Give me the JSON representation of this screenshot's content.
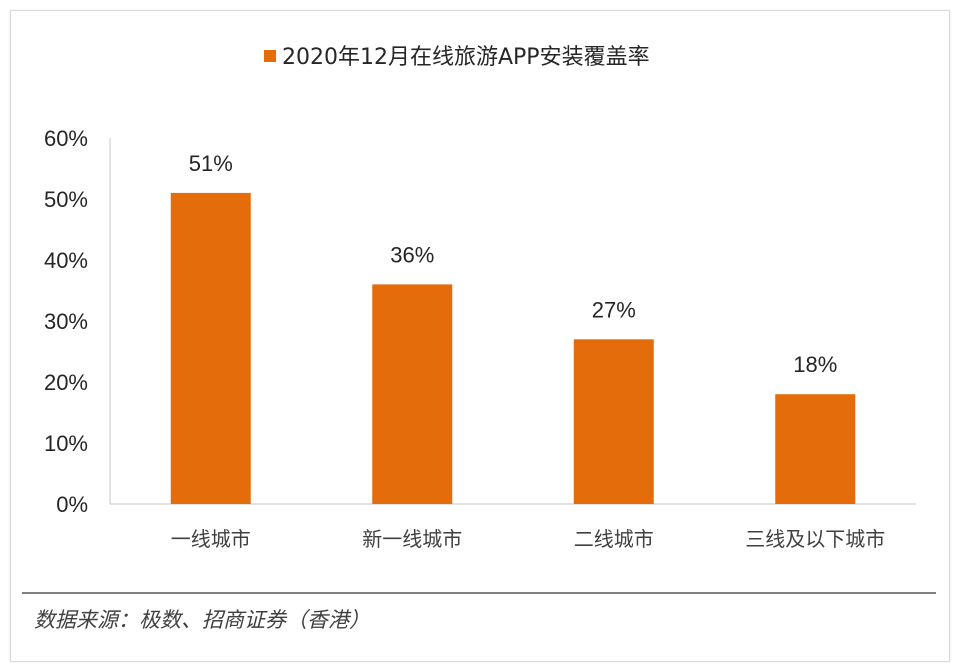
{
  "chart_data": {
    "type": "bar",
    "categories": [
      "一线城市",
      "新一线城市",
      "二线城市",
      "三线及以下城市"
    ],
    "series": [
      {
        "name": "2020年12月在线旅游APP安装覆盖率",
        "values": [
          51,
          36,
          27,
          18
        ],
        "labels": [
          "51%",
          "36%",
          "27%",
          "18%"
        ],
        "color": "#E46C0A"
      }
    ],
    "ylim": [
      0,
      60
    ],
    "yticks": [
      0,
      10,
      20,
      30,
      40,
      50,
      60
    ],
    "ytick_labels": [
      "0%",
      "10%",
      "20%",
      "30%",
      "40%",
      "50%",
      "60%"
    ],
    "legend_position": "top-center",
    "grid": false
  },
  "source": "数据来源：极数、招商证券（香港）"
}
